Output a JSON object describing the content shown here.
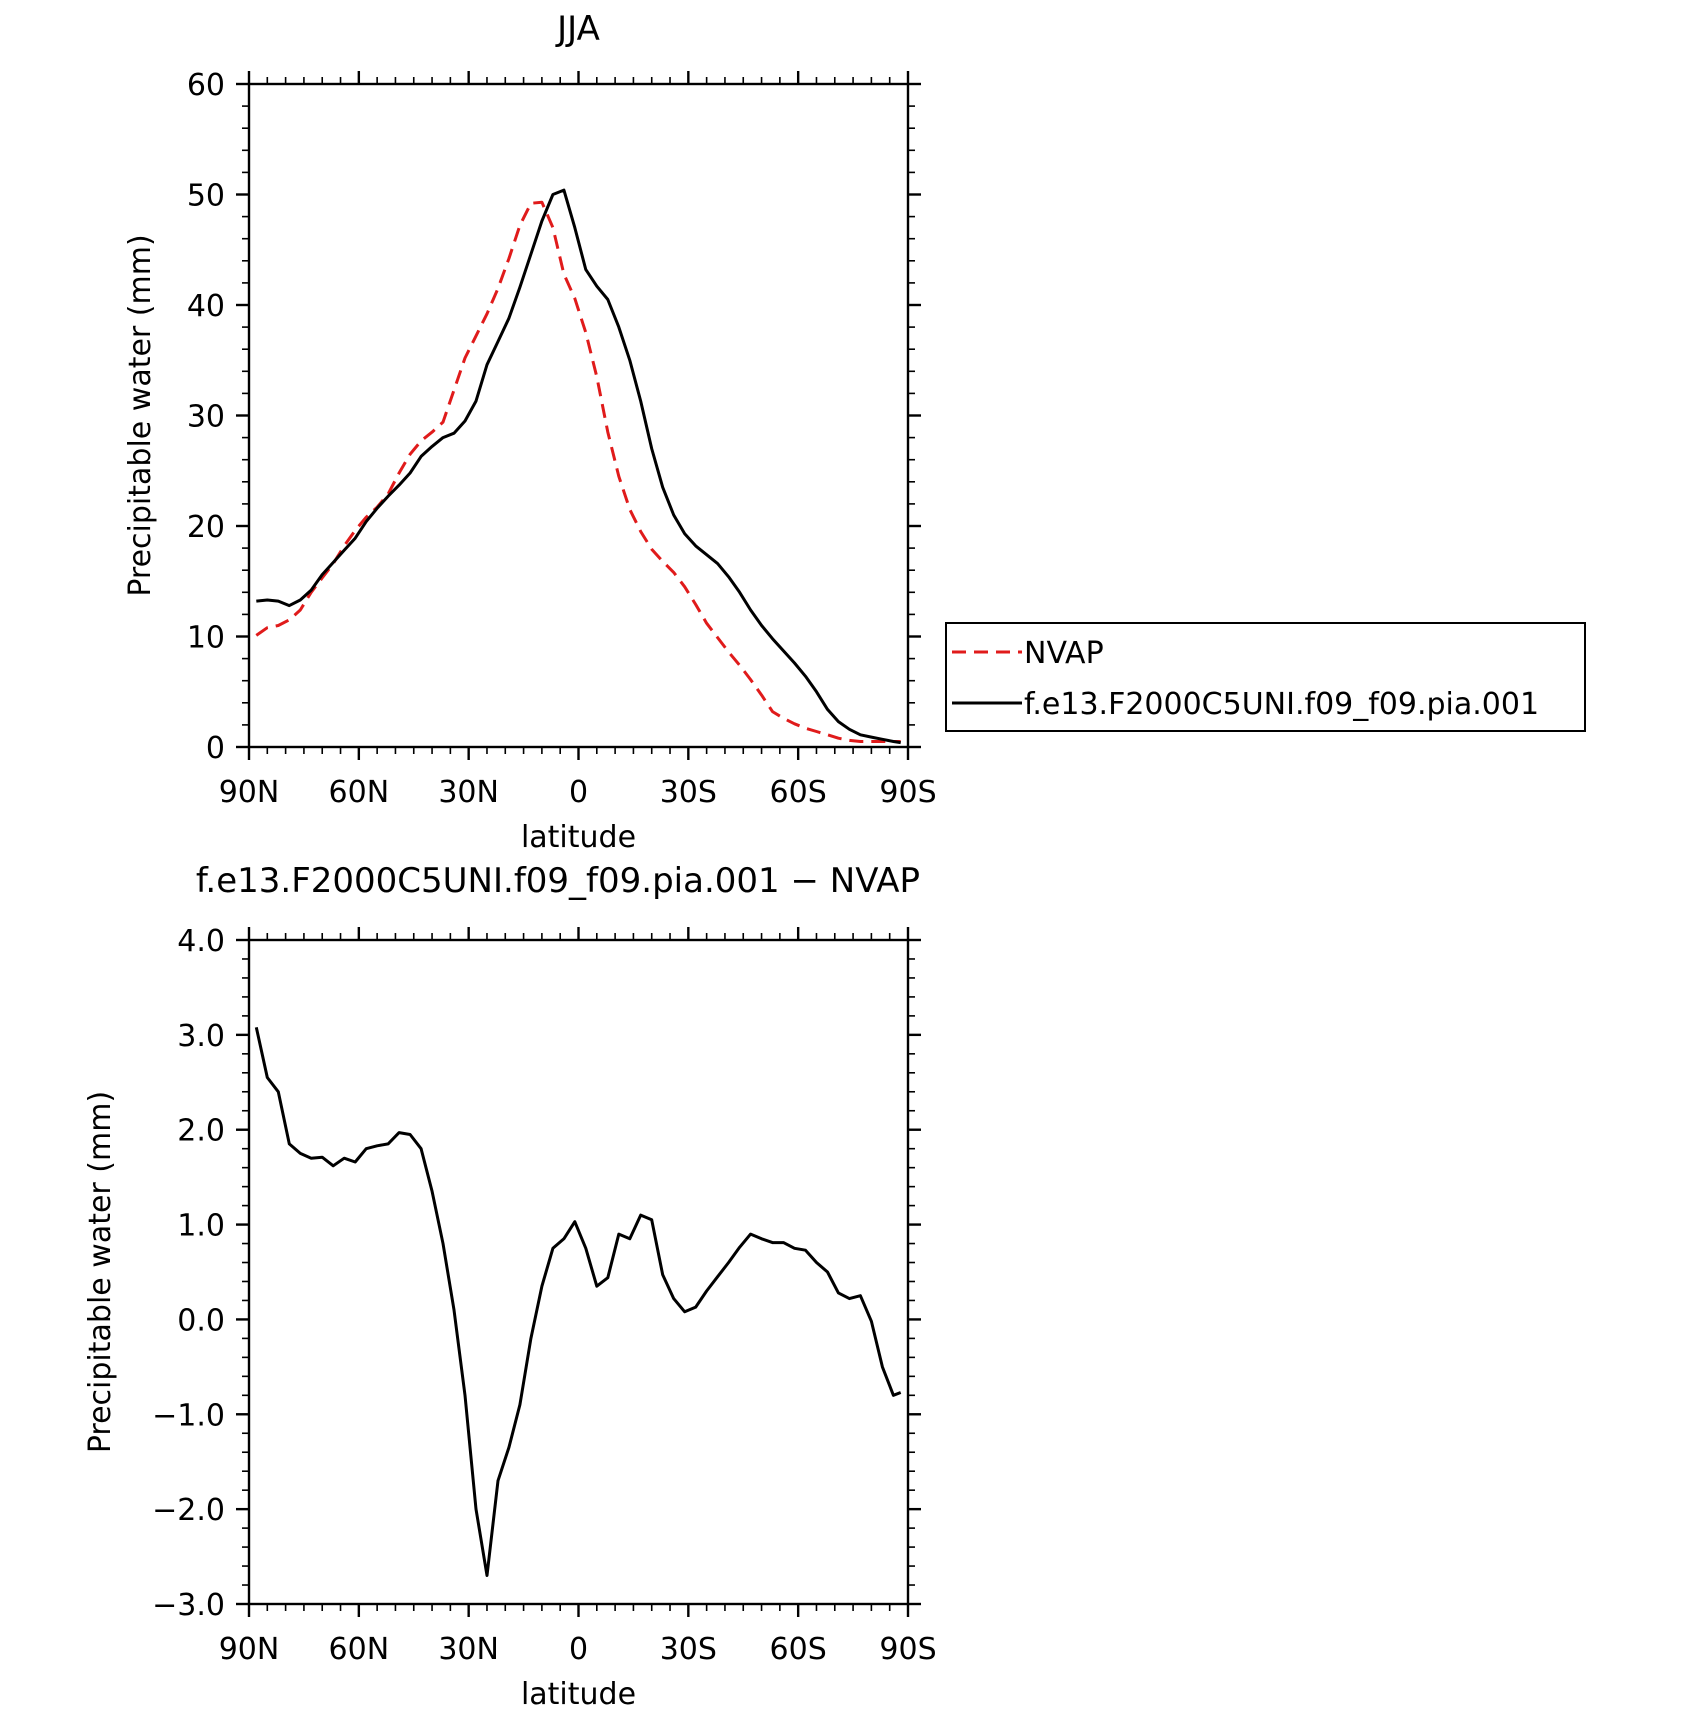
{
  "chart_data": [
    {
      "type": "line",
      "title": "JJA",
      "xlabel": "latitude",
      "ylabel": "Precipitable water (mm)",
      "ylim": [
        0,
        60
      ],
      "xlim": [
        90,
        -90
      ],
      "x_ticks": [
        {
          "value": 90,
          "label": "90N"
        },
        {
          "value": 60,
          "label": "60N"
        },
        {
          "value": 30,
          "label": "30N"
        },
        {
          "value": 0,
          "label": "0"
        },
        {
          "value": -30,
          "label": "30S"
        },
        {
          "value": -60,
          "label": "60S"
        },
        {
          "value": -90,
          "label": "90S"
        }
      ],
      "y_ticks": [
        {
          "value": 0,
          "label": "0"
        },
        {
          "value": 10,
          "label": "10"
        },
        {
          "value": 20,
          "label": "20"
        },
        {
          "value": 30,
          "label": "30"
        },
        {
          "value": 40,
          "label": "40"
        },
        {
          "value": 50,
          "label": "50"
        },
        {
          "value": 60,
          "label": "60"
        }
      ],
      "legend": "right",
      "series": [
        {
          "name": "NVAP",
          "color": "#e01b1b",
          "style": "dashed",
          "x": [
            88,
            85,
            82,
            79,
            76,
            73,
            70,
            67,
            64,
            61,
            58,
            55,
            52,
            49,
            46,
            43,
            40,
            37,
            34,
            31,
            28,
            25,
            22,
            19,
            16,
            13,
            10,
            7,
            4,
            1,
            -2,
            -5,
            -8,
            -11,
            -14,
            -17,
            -20,
            -23,
            -26,
            -29,
            -32,
            -35,
            -38,
            -41,
            -44,
            -47,
            -50,
            -53,
            -56,
            -59,
            -62,
            -65,
            -68,
            -71,
            -74,
            -77,
            -80,
            -83,
            -86,
            -88
          ],
          "values": [
            10.1,
            10.8,
            11.0,
            11.5,
            12.4,
            14.0,
            15.3,
            16.6,
            18.2,
            19.6,
            20.8,
            21.7,
            22.9,
            24.8,
            26.5,
            27.7,
            28.5,
            29.4,
            32.3,
            35.2,
            37.2,
            39.2,
            41.5,
            44.2,
            47.2,
            49.2,
            49.3,
            47.0,
            42.8,
            40.6,
            37.5,
            33.5,
            28.5,
            24.5,
            21.5,
            19.5,
            17.9,
            16.8,
            15.8,
            14.5,
            12.9,
            11.2,
            9.9,
            8.6,
            7.4,
            6.1,
            4.7,
            3.2,
            2.6,
            2.1,
            1.7,
            1.4,
            1.1,
            0.8,
            0.6,
            0.5,
            0.5,
            0.5,
            0.5,
            0.5
          ]
        },
        {
          "name": "f.e13.F2000C5UNI.f09_f09.pia.001",
          "color": "#000000",
          "style": "solid",
          "x": [
            88,
            85,
            82,
            79,
            76,
            73,
            70,
            67,
            64,
            61,
            58,
            55,
            52,
            49,
            46,
            43,
            40,
            37,
            34,
            31,
            28,
            25,
            22,
            19,
            16,
            13,
            10,
            7,
            4,
            1,
            -2,
            -5,
            -8,
            -11,
            -14,
            -17,
            -20,
            -23,
            -26,
            -29,
            -32,
            -35,
            -38,
            -41,
            -44,
            -47,
            -50,
            -53,
            -56,
            -59,
            -62,
            -65,
            -68,
            -71,
            -74,
            -77,
            -80,
            -83,
            -86,
            -88
          ],
          "values": [
            13.2,
            13.3,
            13.2,
            12.8,
            13.3,
            14.2,
            15.6,
            16.7,
            17.8,
            18.9,
            20.4,
            21.6,
            22.7,
            23.7,
            24.8,
            26.3,
            27.2,
            28.0,
            28.4,
            29.5,
            31.3,
            34.6,
            36.7,
            38.8,
            41.6,
            44.6,
            47.6,
            50.0,
            50.4,
            47.0,
            43.2,
            41.7,
            40.5,
            38.0,
            35.0,
            31.3,
            27.0,
            23.5,
            21.0,
            19.3,
            18.2,
            17.4,
            16.6,
            15.4,
            14.0,
            12.4,
            11.0,
            9.8,
            8.7,
            7.6,
            6.4,
            5.0,
            3.4,
            2.3,
            1.6,
            1.1,
            0.9,
            0.7,
            0.5,
            0.4
          ]
        }
      ]
    },
    {
      "type": "line",
      "title": "f.e13.F2000C5UNI.f09_f09.pia.001 − NVAP",
      "xlabel": "latitude",
      "ylabel": "Precipitable water (mm)",
      "ylim": [
        -3.0,
        4.0
      ],
      "xlim": [
        90,
        -90
      ],
      "x_ticks": [
        {
          "value": 90,
          "label": "90N"
        },
        {
          "value": 60,
          "label": "60N"
        },
        {
          "value": 30,
          "label": "30N"
        },
        {
          "value": 0,
          "label": "0"
        },
        {
          "value": -30,
          "label": "30S"
        },
        {
          "value": -60,
          "label": "60S"
        },
        {
          "value": -90,
          "label": "90S"
        }
      ],
      "y_ticks": [
        {
          "value": -3.0,
          "label": "−3.0"
        },
        {
          "value": -2.0,
          "label": "−2.0"
        },
        {
          "value": -1.0,
          "label": "−1.0"
        },
        {
          "value": 0.0,
          "label": "0.0"
        },
        {
          "value": 1.0,
          "label": "1.0"
        },
        {
          "value": 2.0,
          "label": "2.0"
        },
        {
          "value": 3.0,
          "label": "3.0"
        },
        {
          "value": 4.0,
          "label": "4.0"
        }
      ],
      "series": [
        {
          "color": "#000000",
          "style": "solid",
          "x": [
            88,
            85,
            82,
            79,
            76,
            73,
            70,
            67,
            64,
            61,
            58,
            55,
            52,
            49,
            46,
            43,
            40,
            37,
            34,
            31,
            28,
            25,
            22,
            19,
            16,
            13,
            10,
            7,
            4,
            1,
            -2,
            -5,
            -8,
            -11,
            -14,
            -17,
            -20,
            -23,
            -26,
            -29,
            -32,
            -35,
            -38,
            -41,
            -44,
            -47,
            -50,
            -53,
            -56,
            -59,
            -62,
            -65,
            -68,
            -71,
            -74,
            -77,
            -80,
            -83,
            -86,
            -88
          ],
          "values": [
            3.08,
            2.55,
            2.4,
            1.85,
            1.75,
            1.7,
            1.71,
            1.62,
            1.7,
            1.66,
            1.8,
            1.83,
            1.85,
            1.97,
            1.95,
            1.8,
            1.35,
            0.8,
            0.1,
            -0.8,
            -2.0,
            -2.7,
            -1.7,
            -1.35,
            -0.9,
            -0.2,
            0.35,
            0.75,
            0.85,
            1.03,
            0.75,
            0.35,
            0.44,
            0.9,
            0.85,
            1.1,
            1.05,
            0.47,
            0.22,
            0.08,
            0.13,
            0.3,
            0.45,
            0.6,
            0.76,
            0.9,
            0.85,
            0.81,
            0.81,
            0.75,
            0.73,
            0.6,
            0.5,
            0.28,
            0.22,
            0.25,
            -0.02,
            -0.5,
            -0.8,
            -0.77
          ]
        }
      ]
    }
  ]
}
